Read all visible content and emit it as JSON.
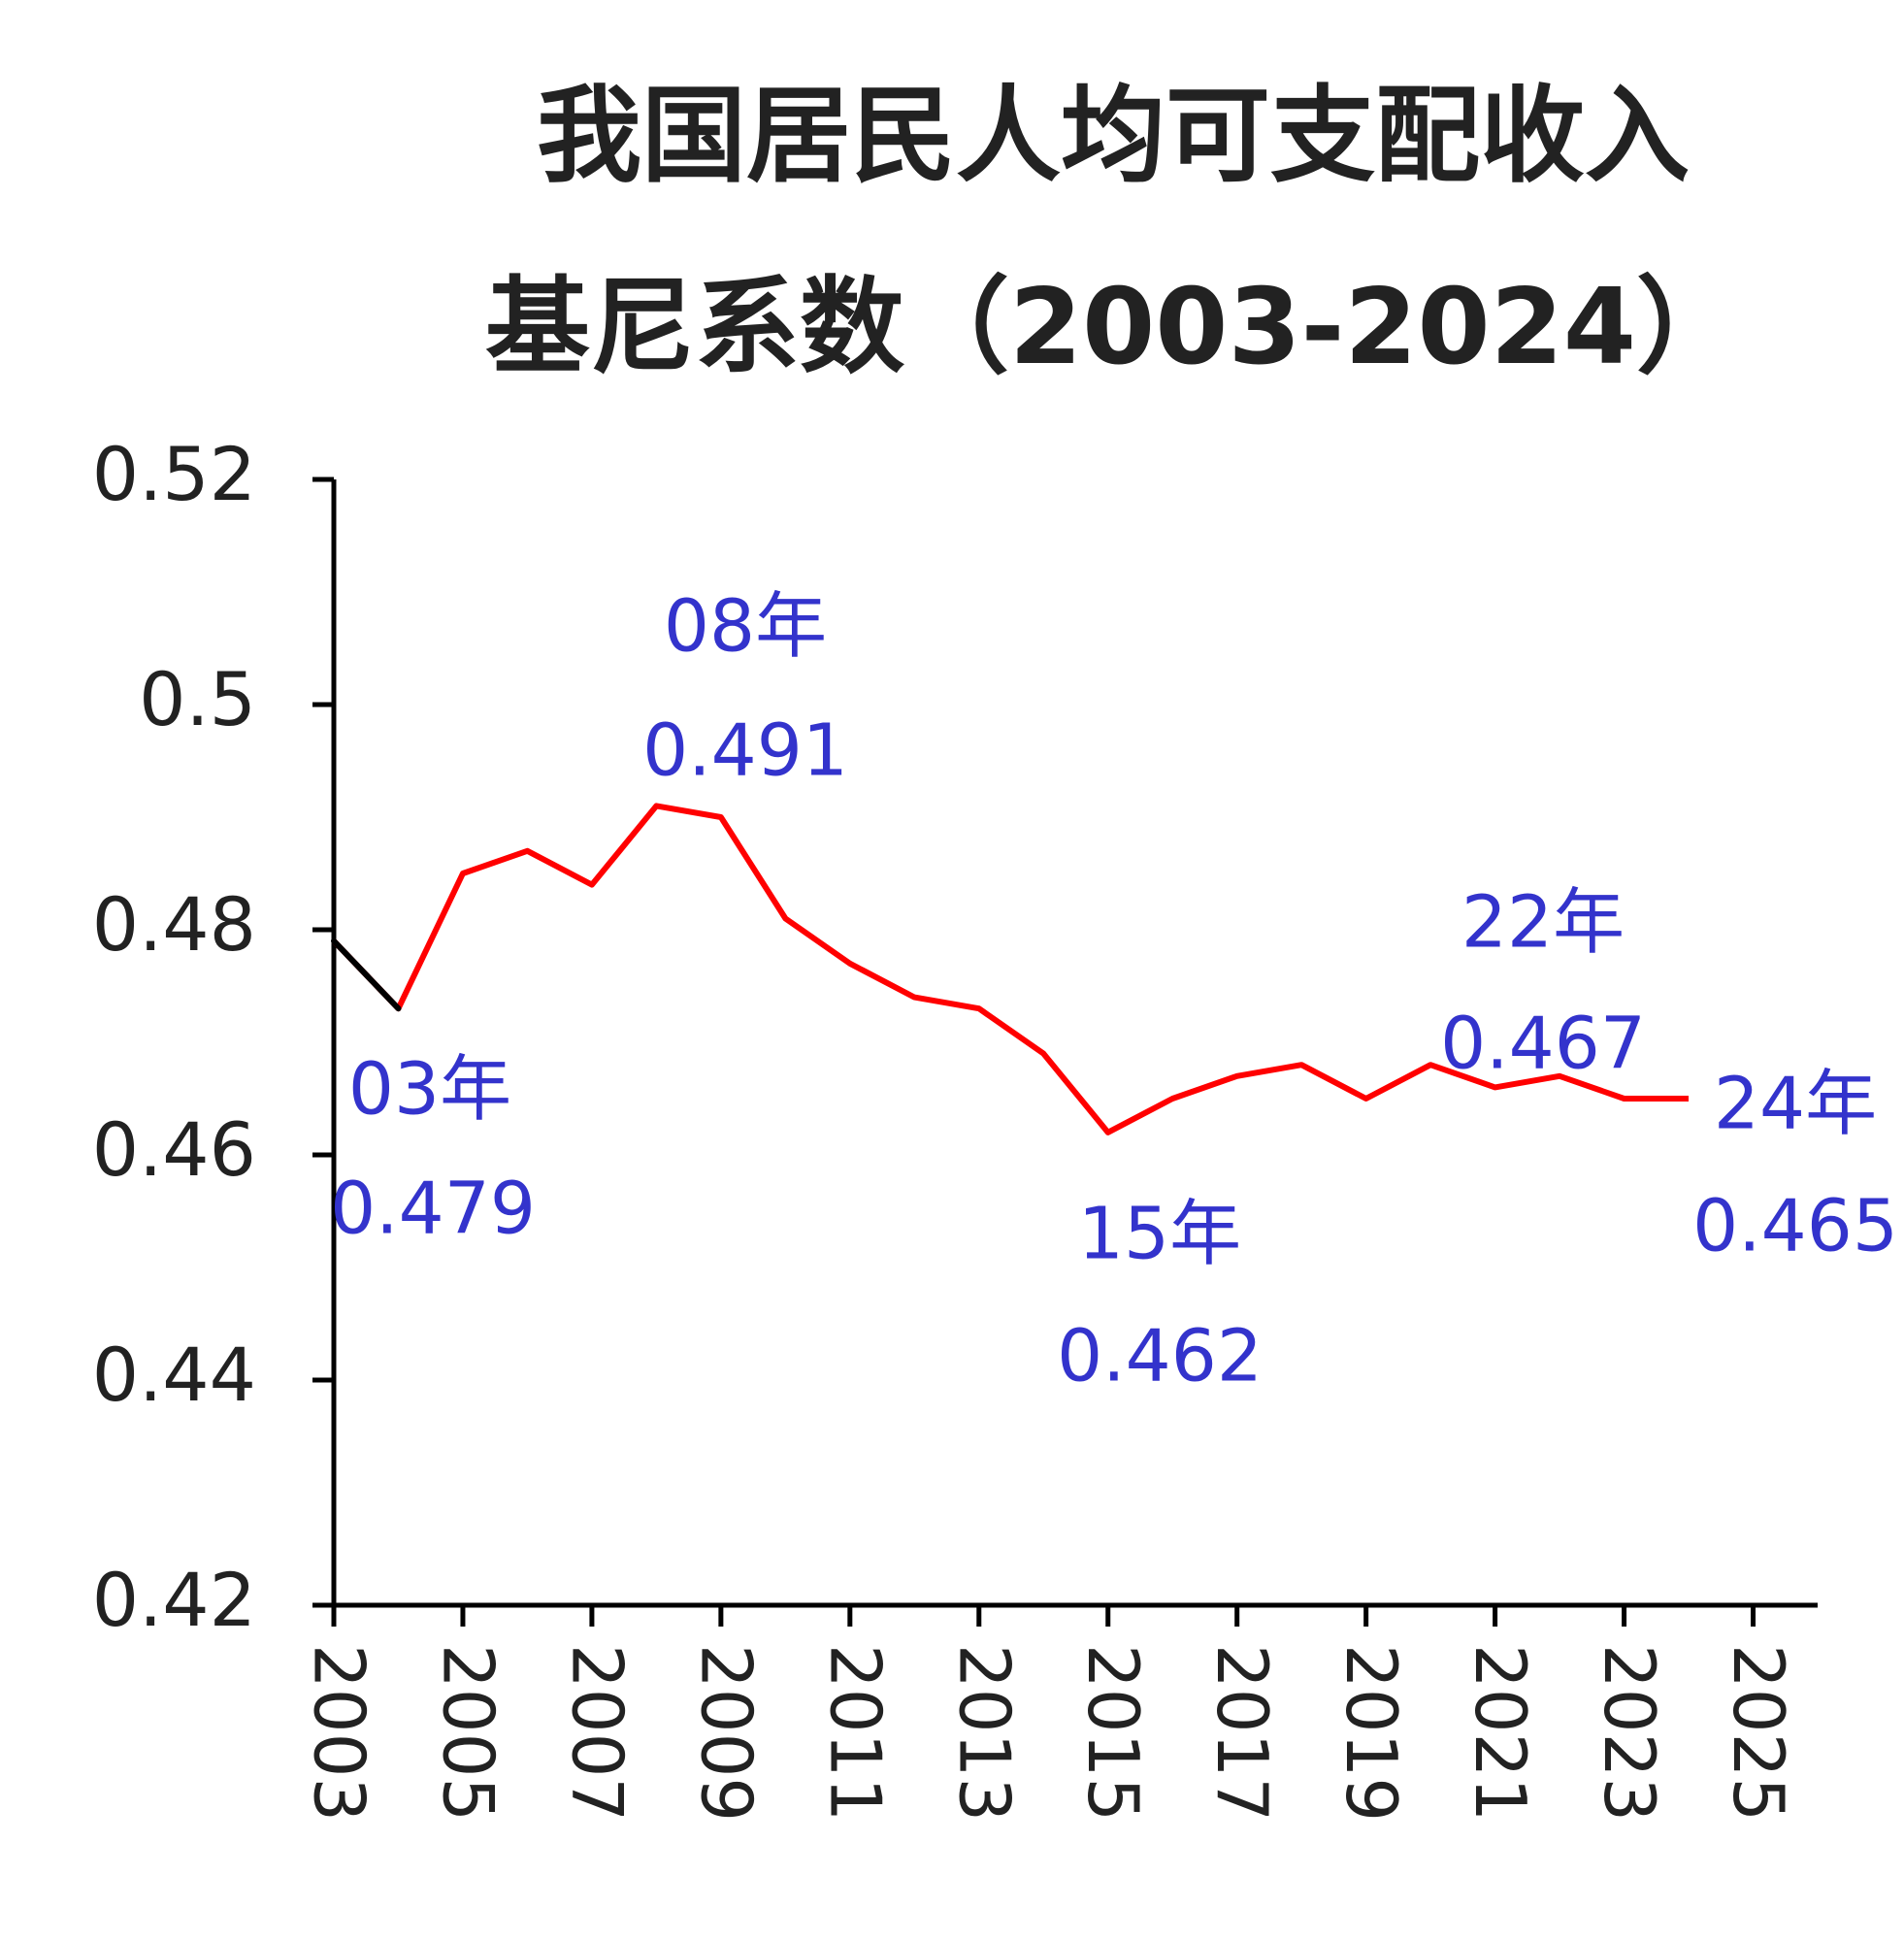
{
  "chart_data": {
    "type": "line",
    "title": [
      "我国居民人均可支配收入",
      "基尼系数（2003-2024）"
    ],
    "x": [
      2003,
      2004,
      2005,
      2006,
      2007,
      2008,
      2009,
      2010,
      2011,
      2012,
      2013,
      2014,
      2015,
      2016,
      2017,
      2018,
      2019,
      2020,
      2021,
      2022,
      2023,
      2024
    ],
    "series": [
      {
        "color": "#ff0000",
        "first_segment_color": "#000000",
        "values": [
          0.479,
          0.473,
          0.485,
          0.487,
          0.484,
          0.491,
          0.49,
          0.481,
          0.477,
          0.474,
          0.473,
          0.469,
          0.462,
          0.465,
          0.467,
          0.468,
          0.465,
          0.468,
          0.466,
          0.467,
          0.465,
          0.465
        ]
      }
    ],
    "xlim": [
      2003,
      2026
    ],
    "xticks": [
      2003,
      2005,
      2007,
      2009,
      2011,
      2013,
      2015,
      2017,
      2019,
      2021,
      2023,
      2025
    ],
    "ylim": [
      0.42,
      0.52
    ],
    "yticks": [
      0.42,
      0.44,
      0.46,
      0.48,
      0.5,
      0.52
    ],
    "annotations": [
      {
        "text": "03年",
        "value": "0.479"
      },
      {
        "text": "08年",
        "value": "0.491"
      },
      {
        "text": "15年",
        "value": "0.462"
      },
      {
        "text": "22年",
        "value": "0.467"
      },
      {
        "text": "24年",
        "value": "0.465"
      }
    ],
    "annotation_color": "#3333cc"
  }
}
